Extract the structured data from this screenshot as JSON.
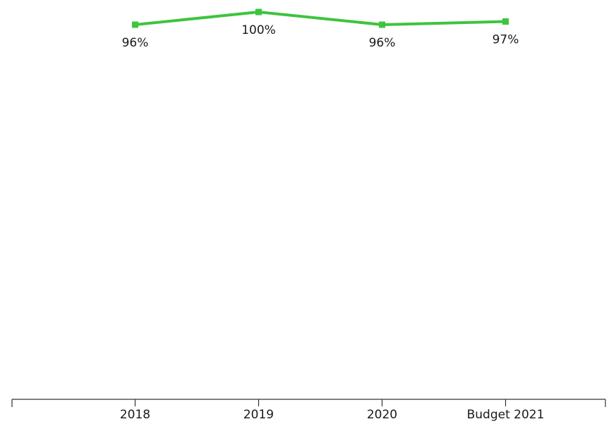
{
  "chart_data": {
    "type": "line",
    "categories": [
      "2018",
      "2019",
      "2020",
      "Budget 2021"
    ],
    "values": [
      96,
      100,
      96,
      97
    ],
    "value_labels": [
      "96%",
      "100%",
      "96%",
      "97%"
    ],
    "color": "#3ec43e"
  }
}
